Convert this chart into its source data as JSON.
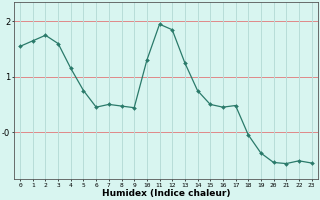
{
  "x": [
    0,
    1,
    2,
    3,
    4,
    5,
    6,
    7,
    8,
    9,
    10,
    11,
    12,
    13,
    14,
    15,
    16,
    17,
    18,
    19,
    20,
    21,
    22,
    23
  ],
  "y": [
    1.55,
    1.65,
    1.75,
    1.6,
    1.15,
    0.75,
    0.45,
    0.5,
    0.47,
    0.44,
    1.3,
    1.95,
    1.85,
    1.25,
    0.75,
    0.5,
    0.45,
    0.48,
    -0.05,
    -0.38,
    -0.55,
    -0.57,
    -0.52,
    -0.56
  ],
  "line_color": "#2a7a6a",
  "marker_color": "#2a7a6a",
  "bg_color": "#d8f5f0",
  "grid_color_h": "#e08888",
  "grid_color_v": "#b8ddd8",
  "xlabel": "Humidex (Indice chaleur)",
  "ylim": [
    -0.85,
    2.35
  ],
  "xlim": [
    -0.5,
    23.5
  ]
}
